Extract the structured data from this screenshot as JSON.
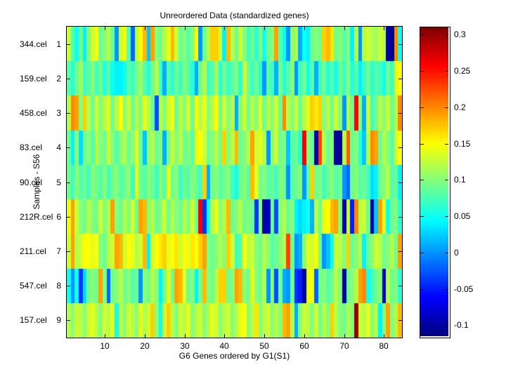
{
  "chart_data": {
    "type": "heatmap",
    "title": "Unreordered Data (standardized genes)",
    "xlabel": "G6 Genes ordered by G1(S1)",
    "ylabel": "Samples - S56",
    "colormap": "jet",
    "clim": [
      -0.115,
      0.31
    ],
    "n_cols": 84,
    "n_rows": 9,
    "x_ticks": [
      10,
      20,
      30,
      40,
      50,
      60,
      70,
      80
    ],
    "row_numbers": [
      "1",
      "2",
      "3",
      "4",
      "5",
      "6",
      "7",
      "8",
      "9"
    ],
    "row_labels": [
      "344.cel",
      "159.cel",
      "458.cel",
      "83.cel",
      "90.cel",
      "212R.cel",
      "211.cel",
      "547.cel",
      "157.cel"
    ],
    "colorbar_ticks": [
      0.3,
      0.25,
      0.2,
      0.15,
      0.1,
      0.05,
      0,
      -0.05,
      -0.1
    ],
    "colorbar_tick_labels": [
      "0.3",
      "0.25",
      "0.2",
      "0.15",
      "0.1",
      "0.05",
      "0",
      "-0.05",
      "-0.1"
    ],
    "matrix": [
      [
        0.13,
        0.08,
        0.05,
        0.09,
        0.04,
        0.1,
        0.13,
        0.15,
        0.09,
        0.1,
        0.12,
        0.09,
        0.0,
        0.13,
        0.15,
        0.08,
        -0.02,
        0.12,
        0.15,
        0.18,
        0.02,
        0.19,
        0.1,
        0.09,
        0.12,
        0.14,
        0.18,
        0.13,
        0.09,
        0.1,
        0.08,
        0.1,
        0.15,
        0.0,
        0.09,
        0.12,
        0.17,
        0.17,
        0.13,
        0.04,
        0.18,
        0.12,
        0.09,
        0.13,
        0.1,
        0.07,
        0.09,
        0.06,
        0.1,
        0.05,
        0.09,
        0.1,
        0.19,
        0.08,
        0.05,
        0.0,
        0.1,
        0.12,
        0.01,
        0.05,
        0.04,
        0.09,
        0.1,
        0.09,
        0.17,
        0.18,
        0.16,
        0.09,
        0.1,
        0.08,
        0.1,
        0.04,
        0.12,
        0.0,
        0.12,
        0.13,
        0.12,
        0.11,
        0.13,
        0.12,
        -0.1,
        -0.11,
        0.2,
        0.05
      ],
      [
        0.08,
        0.06,
        0.09,
        0.11,
        0.07,
        0.08,
        0.1,
        0.07,
        0.09,
        0.06,
        0.08,
        0.05,
        0.04,
        0.04,
        0.05,
        0.08,
        0.07,
        0.09,
        0.11,
        0.08,
        0.06,
        0.09,
        0.12,
        0.07,
        0.01,
        0.08,
        0.06,
        0.09,
        0.07,
        0.1,
        0.08,
        0.06,
        0.01,
        0.09,
        0.12,
        0.07,
        0.08,
        0.11,
        0.06,
        0.09,
        0.07,
        0.08,
        0.1,
        0.06,
        0.13,
        0.09,
        0.07,
        0.09,
        0.06,
        0.0,
        0.08,
        0.07,
        0.01,
        0.09,
        0.06,
        0.08,
        0.1,
        0.0,
        0.07,
        0.09,
        0.05,
        0.08,
        0.01,
        0.07,
        0.09,
        0.06,
        0.08,
        0.05,
        0.09,
        0.07,
        0.1,
        0.06,
        0.08,
        0.04,
        0.07,
        0.09,
        0.06,
        0.08,
        0.07,
        0.05,
        0.09,
        0.07,
        0.14,
        0.15
      ],
      [
        0.12,
        0.2,
        0.19,
        0.1,
        0.17,
        0.12,
        0.09,
        0.13,
        0.1,
        0.12,
        0.14,
        0.09,
        0.12,
        0.15,
        0.1,
        0.13,
        0.09,
        0.12,
        0.1,
        0.14,
        0.12,
        0.09,
        -0.03,
        0.12,
        0.1,
        0.13,
        0.15,
        0.09,
        0.12,
        0.1,
        0.13,
        0.09,
        0.15,
        0.12,
        0.14,
        0.1,
        0.12,
        0.15,
        0.09,
        0.13,
        0.1,
        0.12,
        0.01,
        0.1,
        0.13,
        0.09,
        0.12,
        0.1,
        0.14,
        0.09,
        0.12,
        0.1,
        0.13,
        0.09,
        0.2,
        0.12,
        0.1,
        0.13,
        0.09,
        0.12,
        0.14,
        0.17,
        0.16,
        0.17,
        0.1,
        0.12,
        0.09,
        0.13,
        0.1,
        0.0,
        0.12,
        0.09,
        0.26,
        0.1,
        0.01,
        0.13,
        0.07,
        0.09,
        0.12,
        0.1,
        0.13,
        0.09,
        0.12,
        0.2
      ],
      [
        0.09,
        0.04,
        0.1,
        0.03,
        0.09,
        0.1,
        0.08,
        0.12,
        0.1,
        0.09,
        0.13,
        0.1,
        0.08,
        0.1,
        0.12,
        0.09,
        0.1,
        0.14,
        0.09,
        0.02,
        0.1,
        0.12,
        0.09,
        0.1,
        0.01,
        0.09,
        0.13,
        0.1,
        0.12,
        0.09,
        0.1,
        0.08,
        0.14,
        0.15,
        0.13,
        0.09,
        0.1,
        0.12,
        0.09,
        0.17,
        0.1,
        0.12,
        0.18,
        0.09,
        0.1,
        0.12,
        0.19,
        0.13,
        0.14,
        0.12,
        0.0,
        0.1,
        0.13,
        0.09,
        0.1,
        0.02,
        0.08,
        0.09,
        0.06,
        0.26,
        0.1,
        0.09,
        -0.1,
        0.23,
        0.12,
        0.09,
        0.1,
        -0.1,
        -0.11,
        0.12,
        0.22,
        0.09,
        0.1,
        0.06,
        0.02,
        0.12,
        0.2,
        0.19,
        0.09,
        0.12,
        0.1,
        0.08,
        0.13,
        0.15
      ],
      [
        0.09,
        0.07,
        0.1,
        0.08,
        0.09,
        0.07,
        0.1,
        0.09,
        0.08,
        0.1,
        0.07,
        0.09,
        0.1,
        0.08,
        0.09,
        0.1,
        0.07,
        0.14,
        0.09,
        0.08,
        0.1,
        0.09,
        0.07,
        0.1,
        0.08,
        0.14,
        0.09,
        0.1,
        0.07,
        0.09,
        0.08,
        0.1,
        0.09,
        0.07,
        0.17,
        0.01,
        0.09,
        0.1,
        0.08,
        0.09,
        0.1,
        0.07,
        0.05,
        0.09,
        0.1,
        0.08,
        0.18,
        0.14,
        0.09,
        0.1,
        0.08,
        0.09,
        0.07,
        0.1,
        0.09,
        0.0,
        0.08,
        0.09,
        0.1,
        0.0,
        0.08,
        0.17,
        0.09,
        0.1,
        0.07,
        0.09,
        0.1,
        0.08,
        0.09,
        0.0,
        -0.02,
        0.09,
        0.1,
        0.08,
        0.09,
        0.07,
        0.03,
        0.04,
        0.09,
        0.1,
        0.12,
        0.08,
        0.09,
        0.04
      ],
      [
        0.14,
        0.19,
        0.13,
        0.1,
        0.09,
        0.12,
        0.1,
        0.09,
        0.13,
        0.1,
        0.12,
        0.19,
        0.1,
        0.09,
        0.12,
        0.1,
        0.13,
        0.09,
        0.19,
        0.18,
        0.1,
        0.12,
        0.09,
        0.1,
        0.13,
        0.09,
        0.12,
        0.1,
        0.09,
        0.12,
        0.1,
        0.13,
        0.09,
        0.26,
        -0.04,
        0.05,
        0.12,
        0.14,
        0.1,
        0.12,
        0.18,
        0.09,
        0.1,
        0.12,
        0.09,
        0.1,
        0.09,
        -0.04,
        0.1,
        -0.1,
        -0.09,
        0.09,
        -0.03,
        0.1,
        0.12,
        0.09,
        0.1,
        0.04,
        0.03,
        0.04,
        0.05,
        0.01,
        0.12,
        0.09,
        0.14,
        0.15,
        0.18,
        0.19,
        0.1,
        -0.1,
        0.13,
        -0.05,
        0.2,
        0.12,
        0.13,
        0.09,
        -0.1,
        0.02,
        0.19,
        0.14,
        0.05,
        0.09,
        0.1,
        0.06
      ],
      [
        0.13,
        0.19,
        0.12,
        0.13,
        0.15,
        0.15,
        0.14,
        0.15,
        0.1,
        0.09,
        0.12,
        0.13,
        0.19,
        0.18,
        0.13,
        0.15,
        0.14,
        0.12,
        0.13,
        0.18,
        0.04,
        0.13,
        0.15,
        0.16,
        0.17,
        0.14,
        0.15,
        0.16,
        0.13,
        0.15,
        0.14,
        0.16,
        0.15,
        0.17,
        0.19,
        0.1,
        0.09,
        0.1,
        0.12,
        0.1,
        0.17,
        0.13,
        0.07,
        0.08,
        0.15,
        0.12,
        0.13,
        0.1,
        0.09,
        0.12,
        0.1,
        0.08,
        0.09,
        0.1,
        0.12,
        0.23,
        0.09,
        0.0,
        0.01,
        0.1,
        0.14,
        0.13,
        0.15,
        0.09,
        0.0,
        0.02,
        0.05,
        0.13,
        0.12,
        0.1,
        0.17,
        0.09,
        0.1,
        0.12,
        0.04,
        0.09,
        0.1,
        0.13,
        0.12,
        0.09,
        0.1,
        0.12,
        0.09,
        0.19
      ],
      [
        0.05,
        0.0,
        0.05,
        -0.04,
        0.03,
        0.09,
        0.1,
        0.09,
        0.19,
        0.1,
        -0.02,
        0.09,
        0.1,
        0.12,
        0.09,
        0.1,
        0.08,
        0.09,
        0.0,
        0.1,
        0.09,
        0.12,
        0.1,
        0.04,
        0.09,
        0.14,
        0.09,
        0.19,
        0.18,
        0.14,
        0.09,
        0.1,
        0.04,
        0.09,
        0.18,
        0.1,
        0.09,
        0.12,
        0.17,
        0.17,
        0.09,
        0.1,
        0.19,
        0.18,
        0.1,
        0.09,
        0.14,
        0.1,
        0.09,
        0.12,
        0.0,
        0.1,
        -0.03,
        0.09,
        0.01,
        0.0,
        0.09,
        -0.04,
        -0.05,
        -0.1,
        0.14,
        0.15,
        -0.02,
        0.09,
        0.1,
        0.08,
        0.09,
        0.12,
        0.1,
        -0.1,
        0.09,
        0.1,
        0.12,
        0.19,
        0.2,
        0.05,
        0.07,
        0.09,
        0.1,
        -0.09,
        0.12,
        0.09,
        0.1,
        0.06
      ],
      [
        0.12,
        0.1,
        0.13,
        0.12,
        0.1,
        0.13,
        0.14,
        0.12,
        0.1,
        0.13,
        0.12,
        0.14,
        0.05,
        0.12,
        0.1,
        0.13,
        0.12,
        0.1,
        0.14,
        0.12,
        0.13,
        0.17,
        0.1,
        0.05,
        0.13,
        0.17,
        0.12,
        0.1,
        0.13,
        0.12,
        0.14,
        0.1,
        0.12,
        0.13,
        0.1,
        0.12,
        0.14,
        0.13,
        0.1,
        0.12,
        0.13,
        0.1,
        0.12,
        0.14,
        0.15,
        0.1,
        0.12,
        0.16,
        0.1,
        0.12,
        0.13,
        0.1,
        0.12,
        0.1,
        0.18,
        0.19,
        0.12,
        0.01,
        0.1,
        0.13,
        0.12,
        0.1,
        0.13,
        0.09,
        0.12,
        0.1,
        0.17,
        0.12,
        0.1,
        0.09,
        0.12,
        0.1,
        0.3,
        0.13,
        0.12,
        0.14,
        0.1,
        0.12,
        0.04,
        0.1,
        0.19,
        0.1,
        0.12,
        0.18
      ]
    ]
  }
}
